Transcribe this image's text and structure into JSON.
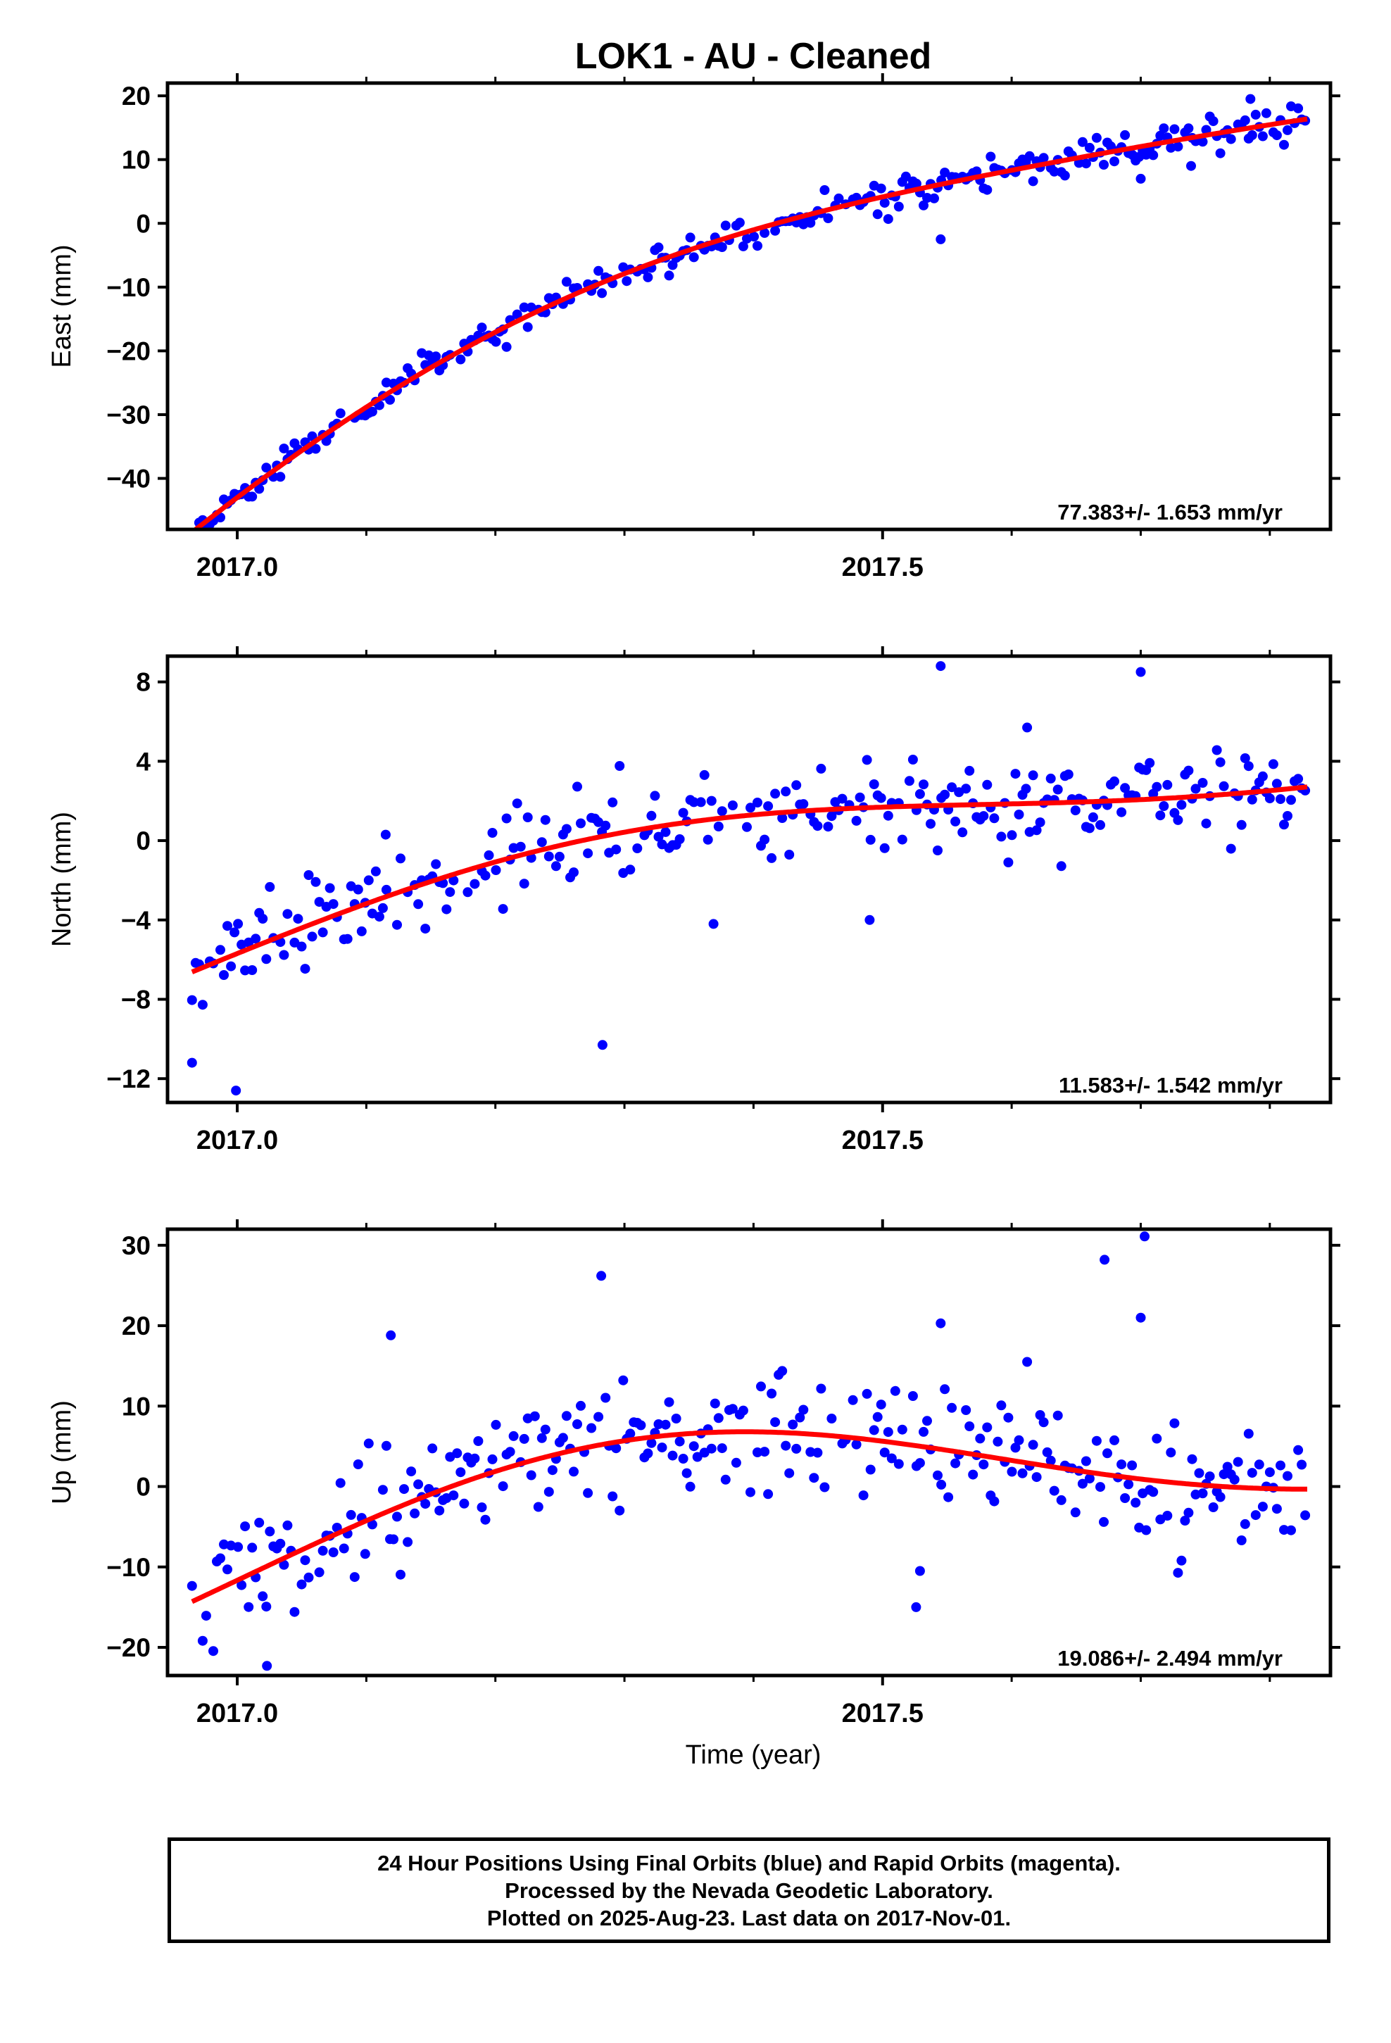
{
  "title": "LOK1  - AU - Cleaned",
  "xlabel": "Time (year)",
  "footer": {
    "line1": "24 Hour Positions Using Final Orbits (blue) and Rapid Orbits (magenta).",
    "line2": "Processed by the Nevada Geodetic Laboratory.",
    "line3": "Plotted on 2025-Aug-23. Last data on 2017-Nov-01."
  },
  "colors": {
    "points": "#0000ff",
    "fit": "#ff0000",
    "frame": "#000000"
  },
  "chart_data": [
    {
      "type": "scatter",
      "name": "east",
      "ylabel": "East (mm)",
      "rate": "77.383+/- 1.653 mm/yr",
      "xlim": [
        2016.946,
        2017.847
      ],
      "ylim": [
        -48,
        22
      ],
      "yticks": [
        -40,
        -30,
        -20,
        -10,
        0,
        10,
        20
      ],
      "ytick_labels": [
        "−40",
        "−30",
        "−20",
        "−10",
        "0",
        "10",
        "20"
      ],
      "xticks": [
        2017.0,
        2017.5
      ],
      "xtick_labels": [
        "2017.0",
        "2017.5"
      ],
      "minor_xticks": [
        2017.1,
        2017.2,
        2017.3,
        2017.4,
        2017.6,
        2017.7,
        2017.8
      ],
      "grid": false,
      "model": {
        "v": 77.383,
        "t0": 2017.4,
        "b": -1.7,
        "q": -72,
        "a": 3.0,
        "c": 0.4,
        "noise": 1.3,
        "seed": 11
      },
      "outliers": [
        [
          2017.545,
          -2.5
        ],
        [
          2017.785,
          19.5
        ],
        [
          2017.695,
          10.5
        ],
        [
          2017.7,
          7.0
        ],
        [
          2017.739,
          9.0
        ]
      ],
      "fit_note": "smooth trajectory model: linear + quadratic + seasonal",
      "x_range_data": [
        2016.965,
        2017.83
      ]
    },
    {
      "type": "scatter",
      "name": "north",
      "ylabel": "North (mm)",
      "rate": "11.583+/- 1.542 mm/yr",
      "xlim": [
        2016.946,
        2017.847
      ],
      "ylim": [
        -13.2,
        9.3
      ],
      "yticks": [
        -12,
        -8,
        -4,
        0,
        4,
        8
      ],
      "ytick_labels": [
        "−12",
        "−8",
        "−4",
        "0",
        "4",
        "8"
      ],
      "xticks": [
        2017.0,
        2017.5
      ],
      "xtick_labels": [
        "2017.0",
        "2017.5"
      ],
      "minor_xticks": [
        2017.1,
        2017.2,
        2017.3,
        2017.4,
        2017.6,
        2017.7,
        2017.8
      ],
      "grid": false,
      "model": {
        "v": 11.583,
        "t0": 2017.4,
        "b": 0.5,
        "q": -9,
        "a": 1.2,
        "c": -0.1,
        "noise": 1.1,
        "seed": 23
      },
      "outliers": [
        [
          2016.965,
          -11.2
        ],
        [
          2016.999,
          -12.6
        ],
        [
          2017.283,
          -10.3
        ],
        [
          2017.545,
          8.8
        ],
        [
          2017.7,
          8.5
        ],
        [
          2017.369,
          -4.2
        ],
        [
          2017.49,
          -4.0
        ],
        [
          2017.612,
          5.7
        ],
        [
          2017.115,
          0.3
        ]
      ],
      "x_range_data": [
        2016.965,
        2017.83
      ]
    },
    {
      "type": "scatter",
      "name": "up",
      "ylabel": "Up (mm)",
      "rate": "19.086+/- 2.494 mm/yr",
      "xlim": [
        2016.946,
        2017.847
      ],
      "ylim": [
        -23.5,
        32
      ],
      "yticks": [
        -20,
        -10,
        0,
        10,
        20,
        30
      ],
      "ytick_labels": [
        "−20",
        "−10",
        "0",
        "10",
        "20",
        "30"
      ],
      "xticks": [
        2017.0,
        2017.5
      ],
      "xtick_labels": [
        "2017.0",
        "2017.5"
      ],
      "minor_xticks": [
        2017.1,
        2017.2,
        2017.3,
        2017.4,
        2017.6,
        2017.7,
        2017.8
      ],
      "grid": false,
      "model": {
        "v": 19.086,
        "t0": 2017.4,
        "b": 2.4,
        "q": -30,
        "a": 5.5,
        "c": -0.3,
        "noise": 3.6,
        "seed": 37
      },
      "outliers": [
        [
          2017.282,
          26.2
        ],
        [
          2017.119,
          18.8
        ],
        [
          2017.545,
          20.3
        ],
        [
          2017.672,
          28.2
        ],
        [
          2017.703,
          31.1
        ],
        [
          2017.7,
          21.0
        ],
        [
          2017.526,
          -15.0
        ],
        [
          2017.529,
          -10.5
        ],
        [
          2017.023,
          -22.3
        ],
        [
          2017.612,
          15.5
        ]
      ],
      "x_range_data": [
        2016.965,
        2017.83
      ]
    }
  ]
}
